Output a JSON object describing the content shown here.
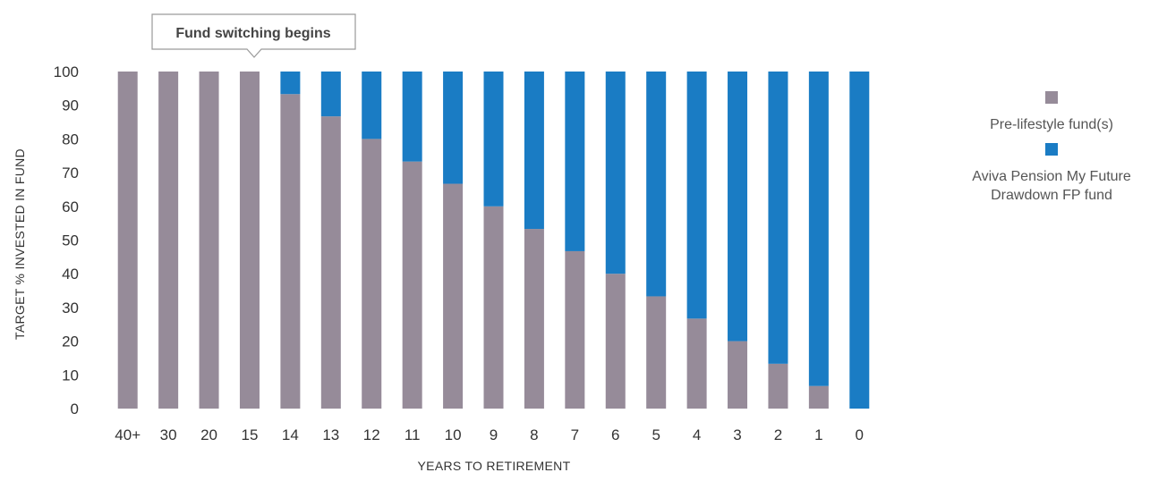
{
  "chart_data": {
    "type": "bar",
    "stacked": true,
    "xlabel": "YEARS TO RETIREMENT",
    "ylabel": "TARGET % INVESTED IN FUND",
    "ylim": [
      0,
      100
    ],
    "yticks": [
      0,
      10,
      20,
      30,
      40,
      50,
      60,
      70,
      80,
      90,
      100
    ],
    "grid": false,
    "legend_position": "right",
    "categories": [
      "40+",
      "30",
      "20",
      "15",
      "14",
      "13",
      "12",
      "11",
      "10",
      "9",
      "8",
      "7",
      "6",
      "5",
      "4",
      "3",
      "2",
      "1",
      "0"
    ],
    "series": [
      {
        "name": "Pre-lifestyle fund(s)",
        "color": "#968b99",
        "values": [
          100,
          100,
          100,
          100,
          93.3,
          86.7,
          80,
          73.3,
          66.7,
          60,
          53.3,
          46.7,
          40,
          33.3,
          26.7,
          20,
          13.3,
          6.7,
          0
        ]
      },
      {
        "name": "Aviva Pension My Future\nDrawdown FP fund",
        "color": "#1a7cc4",
        "values": [
          0,
          0,
          0,
          0,
          6.7,
          13.3,
          20,
          26.7,
          33.3,
          40,
          46.7,
          53.3,
          60,
          66.7,
          73.3,
          80,
          86.7,
          93.3,
          100
        ]
      }
    ],
    "annotations": [
      {
        "text": "Fund switching begins",
        "category": "15"
      }
    ]
  }
}
